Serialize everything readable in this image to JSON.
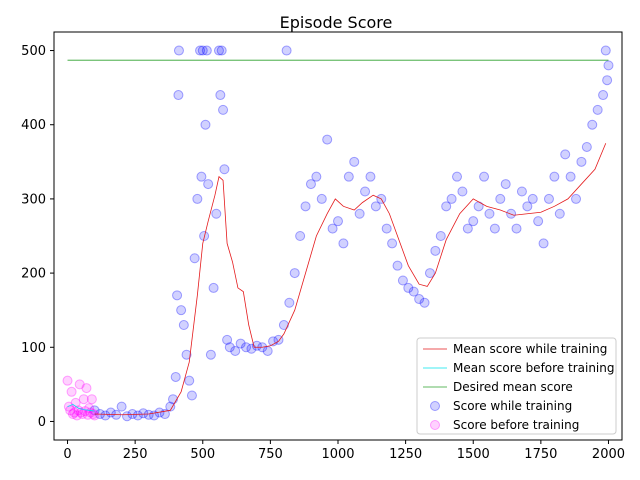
{
  "chart_data": {
    "type": "scatter",
    "title": "Episode Score",
    "xlabel": "",
    "ylabel": "",
    "xlim": [
      -50,
      2050
    ],
    "ylim": [
      -25,
      525
    ],
    "xticks": [
      0,
      250,
      500,
      750,
      1000,
      1250,
      1500,
      1750,
      2000
    ],
    "yticks": [
      0,
      100,
      200,
      300,
      400,
      500
    ],
    "grid": false,
    "legend_position": "lower-right",
    "series": [
      {
        "name": "Mean score while training",
        "kind": "line",
        "color": "#e41a1c",
        "points": [
          [
            100,
            10
          ],
          [
            200,
            9
          ],
          [
            300,
            10
          ],
          [
            380,
            15
          ],
          [
            420,
            40
          ],
          [
            450,
            80
          ],
          [
            480,
            170
          ],
          [
            500,
            240
          ],
          [
            520,
            270
          ],
          [
            545,
            305
          ],
          [
            560,
            330
          ],
          [
            575,
            325
          ],
          [
            590,
            240
          ],
          [
            610,
            215
          ],
          [
            630,
            180
          ],
          [
            650,
            175
          ],
          [
            670,
            130
          ],
          [
            690,
            100
          ],
          [
            720,
            100
          ],
          [
            750,
            102
          ],
          [
            780,
            108
          ],
          [
            800,
            118
          ],
          [
            840,
            150
          ],
          [
            880,
            200
          ],
          [
            920,
            250
          ],
          [
            960,
            280
          ],
          [
            990,
            300
          ],
          [
            1020,
            290
          ],
          [
            1060,
            285
          ],
          [
            1090,
            295
          ],
          [
            1130,
            305
          ],
          [
            1160,
            300
          ],
          [
            1190,
            280
          ],
          [
            1220,
            250
          ],
          [
            1260,
            210
          ],
          [
            1300,
            185
          ],
          [
            1330,
            182
          ],
          [
            1360,
            200
          ],
          [
            1400,
            245
          ],
          [
            1450,
            280
          ],
          [
            1500,
            300
          ],
          [
            1550,
            290
          ],
          [
            1600,
            285
          ],
          [
            1650,
            278
          ],
          [
            1700,
            280
          ],
          [
            1750,
            282
          ],
          [
            1800,
            290
          ],
          [
            1850,
            300
          ],
          [
            1900,
            320
          ],
          [
            1950,
            340
          ],
          [
            1990,
            375
          ]
        ]
      },
      {
        "name": "Mean score before training",
        "kind": "line",
        "color": "#00e5ee",
        "points": [
          [
            0,
            20
          ],
          [
            20,
            23
          ],
          [
            40,
            18
          ],
          [
            60,
            16
          ],
          [
            80,
            15
          ],
          [
            100,
            14
          ]
        ]
      },
      {
        "name": "Desired mean score",
        "kind": "line",
        "color": "#2ca02c",
        "points": [
          [
            0,
            487
          ],
          [
            2000,
            487
          ]
        ]
      },
      {
        "name": "Score while training",
        "kind": "scatter",
        "color": "#0000ff",
        "points": [
          [
            100,
            15
          ],
          [
            120,
            10
          ],
          [
            140,
            8
          ],
          [
            160,
            12
          ],
          [
            180,
            9
          ],
          [
            200,
            20
          ],
          [
            220,
            7
          ],
          [
            240,
            10
          ],
          [
            260,
            8
          ],
          [
            280,
            11
          ],
          [
            300,
            9
          ],
          [
            320,
            8
          ],
          [
            340,
            12
          ],
          [
            360,
            10
          ],
          [
            380,
            20
          ],
          [
            390,
            30
          ],
          [
            400,
            60
          ],
          [
            405,
            170
          ],
          [
            410,
            440
          ],
          [
            412,
            500
          ],
          [
            420,
            150
          ],
          [
            430,
            130
          ],
          [
            440,
            90
          ],
          [
            450,
            55
          ],
          [
            460,
            35
          ],
          [
            470,
            220
          ],
          [
            480,
            300
          ],
          [
            490,
            500
          ],
          [
            495,
            330
          ],
          [
            500,
            500
          ],
          [
            505,
            250
          ],
          [
            510,
            400
          ],
          [
            515,
            500
          ],
          [
            520,
            320
          ],
          [
            530,
            90
          ],
          [
            540,
            180
          ],
          [
            550,
            280
          ],
          [
            560,
            500
          ],
          [
            565,
            440
          ],
          [
            570,
            500
          ],
          [
            575,
            420
          ],
          [
            580,
            340
          ],
          [
            590,
            110
          ],
          [
            600,
            100
          ],
          [
            620,
            95
          ],
          [
            640,
            105
          ],
          [
            660,
            100
          ],
          [
            680,
            98
          ],
          [
            700,
            102
          ],
          [
            720,
            100
          ],
          [
            740,
            95
          ],
          [
            760,
            108
          ],
          [
            780,
            110
          ],
          [
            800,
            130
          ],
          [
            810,
            500
          ],
          [
            820,
            160
          ],
          [
            840,
            200
          ],
          [
            860,
            250
          ],
          [
            880,
            290
          ],
          [
            900,
            320
          ],
          [
            920,
            330
          ],
          [
            940,
            300
          ],
          [
            960,
            380
          ],
          [
            980,
            260
          ],
          [
            1000,
            270
          ],
          [
            1020,
            240
          ],
          [
            1040,
            330
          ],
          [
            1060,
            350
          ],
          [
            1080,
            280
          ],
          [
            1100,
            310
          ],
          [
            1120,
            330
          ],
          [
            1140,
            290
          ],
          [
            1160,
            300
          ],
          [
            1180,
            260
          ],
          [
            1200,
            240
          ],
          [
            1220,
            210
          ],
          [
            1240,
            190
          ],
          [
            1260,
            180
          ],
          [
            1280,
            175
          ],
          [
            1300,
            165
          ],
          [
            1320,
            160
          ],
          [
            1340,
            200
          ],
          [
            1360,
            230
          ],
          [
            1380,
            250
          ],
          [
            1400,
            290
          ],
          [
            1420,
            300
          ],
          [
            1440,
            330
          ],
          [
            1460,
            310
          ],
          [
            1480,
            260
          ],
          [
            1500,
            270
          ],
          [
            1520,
            290
          ],
          [
            1540,
            330
          ],
          [
            1560,
            280
          ],
          [
            1580,
            260
          ],
          [
            1600,
            300
          ],
          [
            1620,
            320
          ],
          [
            1640,
            280
          ],
          [
            1660,
            260
          ],
          [
            1680,
            310
          ],
          [
            1700,
            290
          ],
          [
            1720,
            300
          ],
          [
            1740,
            270
          ],
          [
            1760,
            240
          ],
          [
            1780,
            300
          ],
          [
            1800,
            330
          ],
          [
            1820,
            280
          ],
          [
            1840,
            360
          ],
          [
            1860,
            330
          ],
          [
            1880,
            300
          ],
          [
            1900,
            350
          ],
          [
            1920,
            370
          ],
          [
            1940,
            400
          ],
          [
            1960,
            420
          ],
          [
            1980,
            440
          ],
          [
            1990,
            500
          ],
          [
            1995,
            460
          ],
          [
            2000,
            480
          ]
        ]
      },
      {
        "name": "Score before training",
        "kind": "scatter",
        "color": "#ff00ff",
        "points": [
          [
            0,
            55
          ],
          [
            5,
            20
          ],
          [
            10,
            15
          ],
          [
            15,
            40
          ],
          [
            20,
            10
          ],
          [
            25,
            12
          ],
          [
            30,
            25
          ],
          [
            35,
            8
          ],
          [
            40,
            15
          ],
          [
            45,
            50
          ],
          [
            50,
            12
          ],
          [
            55,
            10
          ],
          [
            60,
            30
          ],
          [
            65,
            14
          ],
          [
            70,
            45
          ],
          [
            75,
            9
          ],
          [
            80,
            18
          ],
          [
            85,
            12
          ],
          [
            90,
            30
          ],
          [
            95,
            10
          ],
          [
            100,
            8
          ]
        ]
      }
    ]
  }
}
